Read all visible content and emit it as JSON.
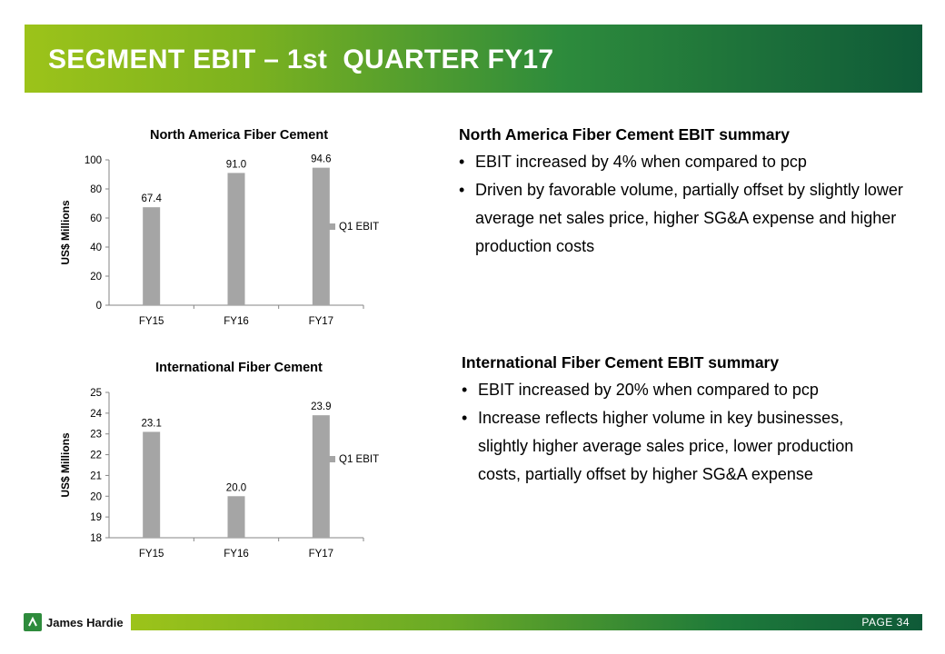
{
  "page_title": "SEGMENT EBIT – 1st  QUARTER FY17",
  "colors": {
    "bar": "#a5a5a5",
    "accent_green": "#2e8b3c",
    "banner_light": "#9cc31a",
    "banner_dark": "#0f5a38"
  },
  "chart_data": [
    {
      "type": "bar",
      "title": "North America Fiber Cement",
      "ylabel": "US$ Millions",
      "xlabel": "",
      "categories": [
        "FY15",
        "FY16",
        "FY17"
      ],
      "series": [
        {
          "name": "Q1 EBIT",
          "values": [
            67.4,
            91.0,
            94.6
          ]
        }
      ],
      "value_labels": [
        "67.4",
        "91.0",
        "94.6"
      ],
      "ylim": [
        0,
        100
      ],
      "yticks": [
        "0",
        "20",
        "40",
        "60",
        "80",
        "100"
      ],
      "legend": "right",
      "grid": false
    },
    {
      "type": "bar",
      "title": "International Fiber Cement",
      "ylabel": "US$ Millions",
      "xlabel": "",
      "categories": [
        "FY15",
        "FY16",
        "FY17"
      ],
      "series": [
        {
          "name": "Q1 EBIT",
          "values": [
            23.1,
            20.0,
            23.9
          ]
        }
      ],
      "value_labels": [
        "23.1",
        "20.0",
        "23.9"
      ],
      "ylim": [
        18,
        25
      ],
      "yticks": [
        "18",
        "19",
        "20",
        "21",
        "22",
        "23",
        "24",
        "25"
      ],
      "legend": "right",
      "grid": false
    }
  ],
  "summaries": [
    {
      "heading": "North America Fiber Cement EBIT summary",
      "bullets": [
        "EBIT increased by 4% when compared to pcp",
        "Driven by favorable volume, partially offset by slightly lower average net sales price, higher SG&A expense and higher production costs"
      ]
    },
    {
      "heading": "International Fiber Cement EBIT summary",
      "bullets": [
        "EBIT increased by 20% when compared to pcp",
        "Increase reflects higher volume in key businesses, slightly higher average sales price, lower production costs, partially offset by higher SG&A expense"
      ]
    }
  ],
  "footer": {
    "logo_text": "James Hardie",
    "logo_icon": "james-hardie-logo-icon",
    "page_label": "PAGE  34"
  }
}
